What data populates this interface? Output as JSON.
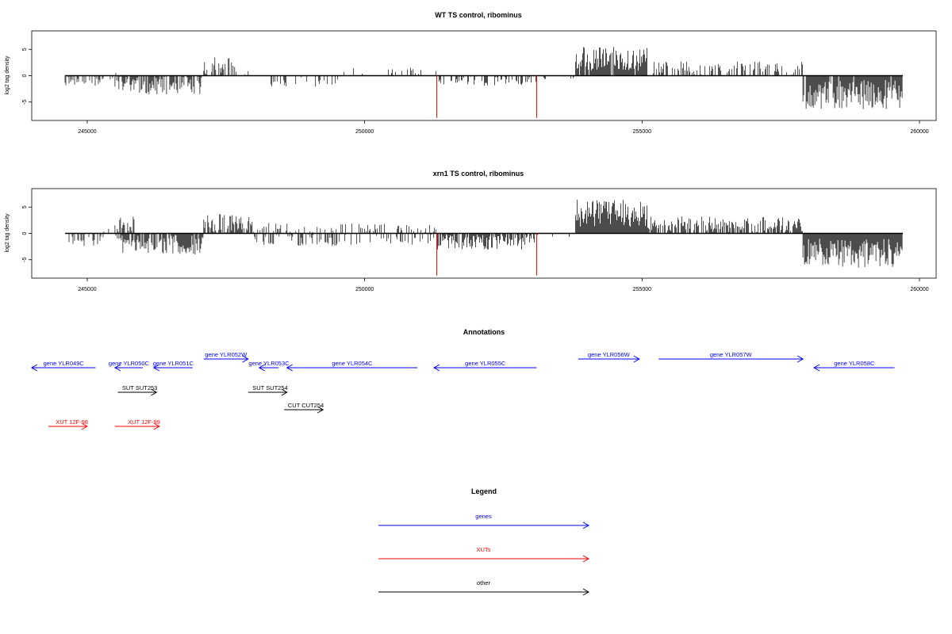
{
  "chart_data": [
    {
      "type": "bar",
      "title": "WT TS control, ribominus",
      "ylabel": "log2 tag density",
      "xlim": [
        244000,
        260300
      ],
      "ylim": [
        -8.5,
        8.5
      ],
      "x_ticks": [
        245000,
        250000,
        255000,
        260000
      ],
      "y_ticks": [
        5,
        0,
        -5
      ],
      "seed": 11,
      "profile": [
        {
          "x0": 244600,
          "x1": 245300,
          "mean": -0.8,
          "amp": 1.2,
          "density": 0.45
        },
        {
          "x0": 245400,
          "x1": 245500,
          "mean": -0.2,
          "amp": 0.6,
          "density": 0.15
        },
        {
          "x0": 245500,
          "x1": 245800,
          "mean": -1.5,
          "amp": 1.6,
          "density": 0.7
        },
        {
          "x0": 245500,
          "x1": 245800,
          "mean": 0.4,
          "amp": 0.8,
          "density": 0.15
        },
        {
          "x0": 245800,
          "x1": 247100,
          "mean": -1.7,
          "amp": 1.9,
          "density": 0.85
        },
        {
          "x0": 247100,
          "x1": 247700,
          "mean": 1.5,
          "amp": 2.0,
          "density": 0.6
        },
        {
          "x0": 247700,
          "x1": 248200,
          "mean": 0.8,
          "amp": 0.8,
          "density": 0.2
        },
        {
          "x0": 248300,
          "x1": 249600,
          "mean": -0.9,
          "amp": 1.2,
          "density": 0.35
        },
        {
          "x0": 249600,
          "x1": 251300,
          "mean": 0.7,
          "amp": 0.8,
          "density": 0.08
        },
        {
          "x0": 250400,
          "x1": 251100,
          "mean": 0.9,
          "amp": 0.6,
          "density": 0.25
        },
        {
          "x0": 251300,
          "x1": 253100,
          "mean": -0.9,
          "amp": 1.0,
          "density": 0.45
        },
        {
          "x0": 253100,
          "x1": 253800,
          "mean": -0.3,
          "amp": 0.5,
          "density": 0.12
        },
        {
          "x0": 253800,
          "x1": 255100,
          "mean": 3.2,
          "amp": 2.3,
          "density": 0.95
        },
        {
          "x0": 255100,
          "x1": 257900,
          "mean": 1.3,
          "amp": 1.4,
          "density": 0.45
        },
        {
          "x0": 257900,
          "x1": 259700,
          "mean": -3.6,
          "amp": 2.8,
          "density": 0.97
        }
      ],
      "red_lines": [
        {
          "x": 251300,
          "y": -8.0
        },
        {
          "x": 253100,
          "y": -8.0
        }
      ]
    },
    {
      "type": "bar",
      "title": "xrn1 TS control, ribominus",
      "ylabel": "log2 tag density",
      "xlim": [
        244000,
        260300
      ],
      "ylim": [
        -8.5,
        8.5
      ],
      "x_ticks": [
        245000,
        250000,
        255000,
        260000
      ],
      "y_ticks": [
        5,
        0,
        -5
      ],
      "seed": 29,
      "profile": [
        {
          "x0": 244600,
          "x1": 245300,
          "mean": -1.0,
          "amp": 1.4,
          "density": 0.55
        },
        {
          "x0": 245300,
          "x1": 245500,
          "mean": 0.6,
          "amp": 0.8,
          "density": 0.2
        },
        {
          "x0": 245500,
          "x1": 245900,
          "mean": 1.6,
          "amp": 1.8,
          "density": 0.6
        },
        {
          "x0": 245500,
          "x1": 245900,
          "mean": -2.0,
          "amp": 2.0,
          "density": 0.7
        },
        {
          "x0": 245900,
          "x1": 247100,
          "mean": -2.0,
          "amp": 2.0,
          "density": 0.9
        },
        {
          "x0": 247100,
          "x1": 248000,
          "mean": 1.8,
          "amp": 2.0,
          "density": 0.85
        },
        {
          "x0": 248000,
          "x1": 249600,
          "mean": -1.0,
          "amp": 1.4,
          "density": 0.55
        },
        {
          "x0": 248000,
          "x1": 249600,
          "mean": 1.0,
          "amp": 1.0,
          "density": 0.25
        },
        {
          "x0": 249600,
          "x1": 251300,
          "mean": -1.0,
          "amp": 1.2,
          "density": 0.35
        },
        {
          "x0": 249600,
          "x1": 251300,
          "mean": 1.0,
          "amp": 1.0,
          "density": 0.3
        },
        {
          "x0": 251300,
          "x1": 253100,
          "mean": -1.5,
          "amp": 1.6,
          "density": 0.9
        },
        {
          "x0": 253100,
          "x1": 253800,
          "mean": -0.3,
          "amp": 0.5,
          "density": 0.15
        },
        {
          "x0": 253800,
          "x1": 255100,
          "mean": 3.8,
          "amp": 2.6,
          "density": 1.0
        },
        {
          "x0": 255100,
          "x1": 257900,
          "mean": 1.7,
          "amp": 1.5,
          "density": 0.7
        },
        {
          "x0": 257900,
          "x1": 259700,
          "mean": -3.8,
          "amp": 2.8,
          "density": 1.0
        }
      ],
      "red_lines": [
        {
          "x": 251300,
          "y": -8.0
        },
        {
          "x": 253100,
          "y": -8.0
        }
      ]
    }
  ],
  "annotations": {
    "title": "Annotations",
    "features": [
      {
        "label": "gene YLR049C",
        "x0": 244000,
        "x1": 245150,
        "row": 0,
        "dir": "reverse",
        "type": "genes",
        "label_pos": "middle"
      },
      {
        "label": "gene YLR050C",
        "x0": 245500,
        "x1": 246000,
        "row": 0,
        "dir": "reverse",
        "type": "genes",
        "label_pos": "middle"
      },
      {
        "label": "gene YLR051C",
        "x0": 246200,
        "x1": 246900,
        "row": 0,
        "dir": "reverse",
        "type": "genes",
        "label_pos": "middle"
      },
      {
        "label": "gene YLR052W",
        "x0": 247100,
        "x1": 247900,
        "row": -1,
        "dir": "forward",
        "type": "genes",
        "label_pos": "middle"
      },
      {
        "label": "gene YLR053C",
        "x0": 248100,
        "x1": 248450,
        "row": 0,
        "dir": "reverse",
        "type": "genes",
        "label_pos": "middle"
      },
      {
        "label": "gene YLR054C",
        "x0": 248600,
        "x1": 250950,
        "row": 0,
        "dir": "reverse",
        "type": "genes",
        "label_pos": "middle"
      },
      {
        "label": "gene YLR055C",
        "x0": 251250,
        "x1": 253100,
        "row": 0,
        "dir": "reverse",
        "type": "genes",
        "label_pos": "middle"
      },
      {
        "label": "gene YLR056W",
        "x0": 253850,
        "x1": 254950,
        "row": -1,
        "dir": "forward",
        "type": "genes",
        "label_pos": "middle"
      },
      {
        "label": "gene YLR057W",
        "x0": 255300,
        "x1": 257900,
        "row": -1,
        "dir": "forward",
        "type": "genes",
        "label_pos": "middle"
      },
      {
        "label": "gene YLR058C",
        "x0": 258100,
        "x1": 259550,
        "row": 0,
        "dir": "reverse",
        "type": "genes",
        "label_pos": "middle"
      },
      {
        "label": "SUT SUT253",
        "x0": 245550,
        "x1": 246250,
        "row": 1,
        "dir": "forward",
        "type": "other",
        "label_pos": "end"
      },
      {
        "label": "SUT SUT254",
        "x0": 247900,
        "x1": 248600,
        "row": 1,
        "dir": "forward",
        "type": "other",
        "label_pos": "end"
      },
      {
        "label": "CUT CUT254",
        "x0": 248550,
        "x1": 249250,
        "row": 2,
        "dir": "forward",
        "type": "other",
        "label_pos": "end"
      },
      {
        "label": "XUT 12F-98",
        "x0": 244300,
        "x1": 245000,
        "row": 3,
        "dir": "forward",
        "type": "XUTs",
        "label_pos": "end"
      },
      {
        "label": "XUT 12F-99",
        "x0": 245500,
        "x1": 246300,
        "row": 3,
        "dir": "forward",
        "type": "XUTs",
        "label_pos": "end"
      }
    ]
  },
  "legend": {
    "title": "Legend",
    "items": [
      {
        "label": "genes",
        "color": "#0000ff"
      },
      {
        "label": "XUTs",
        "color": "#ff0000"
      },
      {
        "label": "other",
        "color": "#000000"
      }
    ]
  },
  "colors": {
    "genes": "#0000ff",
    "XUTs": "#ff0000",
    "other": "#000000",
    "signal": "#000000",
    "red_marker": "#ff0000"
  }
}
